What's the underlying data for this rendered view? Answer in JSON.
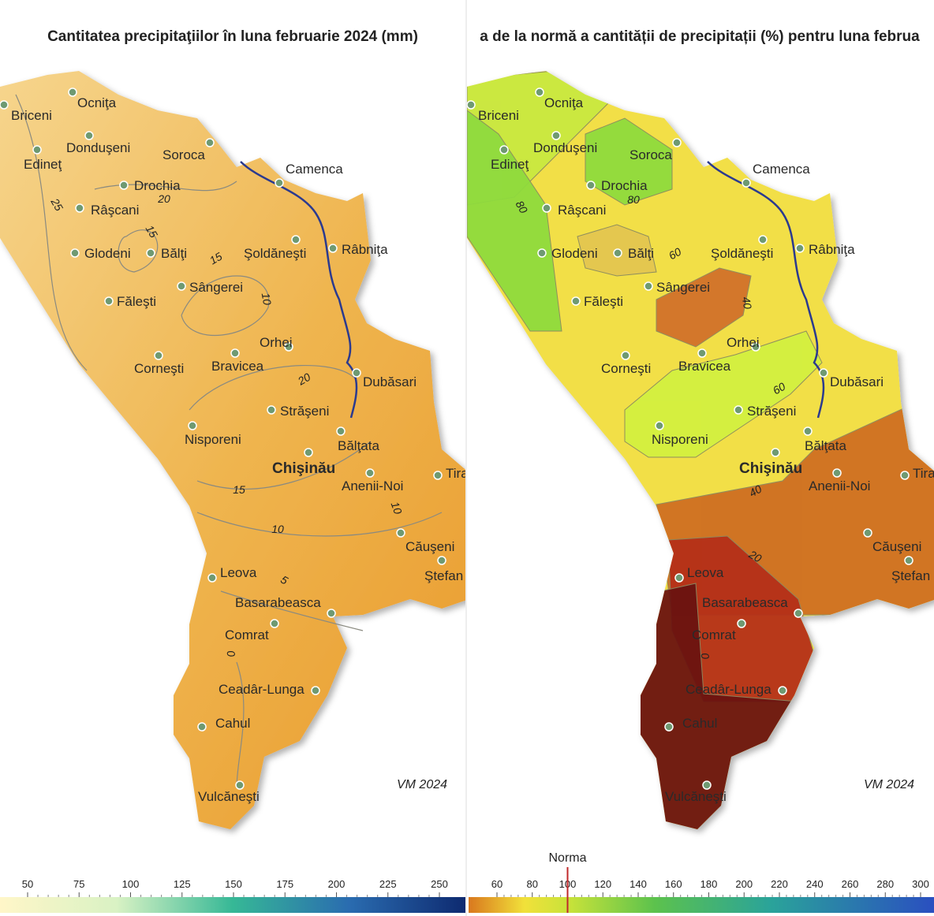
{
  "panels": [
    {
      "title": "Cantitatea precipitaţiilor în luna februarie 2024 (mm)",
      "watermark": "VM 2024",
      "contour_labels": [
        25,
        20,
        15,
        15,
        10,
        20,
        15,
        10,
        10,
        5,
        0
      ]
    },
    {
      "title": "a de la normă a cantității de precipitații (%) pentru luna februa",
      "watermark": "VM 2024",
      "contour_labels": [
        80,
        80,
        60,
        40,
        60,
        40,
        20,
        0
      ]
    }
  ],
  "cities": [
    {
      "name": "Briceni"
    },
    {
      "name": "Ocniţa"
    },
    {
      "name": "Donduşeni"
    },
    {
      "name": "Edineţ"
    },
    {
      "name": "Soroca"
    },
    {
      "name": "Camenca"
    },
    {
      "name": "Drochia"
    },
    {
      "name": "Râşcani"
    },
    {
      "name": "Glodeni"
    },
    {
      "name": "Bălţi"
    },
    {
      "name": "Şoldăneşti"
    },
    {
      "name": "Râbniţa"
    },
    {
      "name": "Sângerei"
    },
    {
      "name": "Făleşti"
    },
    {
      "name": "Orhei"
    },
    {
      "name": "Corneşti"
    },
    {
      "name": "Bravicea"
    },
    {
      "name": "Dubăsari"
    },
    {
      "name": "Străşeni"
    },
    {
      "name": "Nisporeni"
    },
    {
      "name": "Bălţata"
    },
    {
      "name": "Chişinău",
      "capital": true
    },
    {
      "name": "Anenii-Noi"
    },
    {
      "name": "Tira"
    },
    {
      "name": "Căuşeni"
    },
    {
      "name": "Ştefan"
    },
    {
      "name": "Leova"
    },
    {
      "name": "Basarabeasca"
    },
    {
      "name": "Comrat"
    },
    {
      "name": "Ceadâr-Lunga"
    },
    {
      "name": "Cahul"
    },
    {
      "name": "Vulcăneşti"
    }
  ],
  "legends": [
    {
      "ticks": [
        50,
        75,
        100,
        125,
        150,
        175,
        200,
        225,
        250
      ]
    },
    {
      "ticks": [
        60,
        80,
        100,
        120,
        140,
        160,
        180,
        200,
        220,
        240,
        260,
        280,
        300
      ],
      "marker": 100,
      "marker_label": "Norma"
    }
  ]
}
